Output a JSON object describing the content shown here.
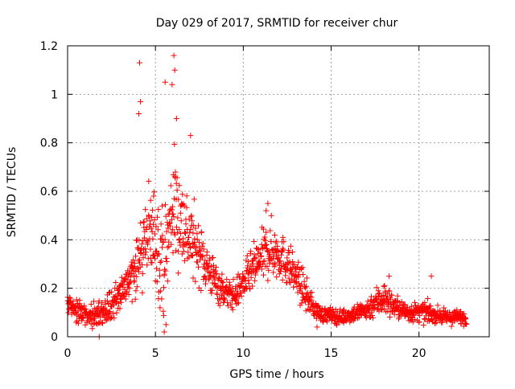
{
  "chart_data": {
    "type": "scatter",
    "title": "Day 029 of 2017, SRMTID for receiver chur",
    "xlabel": "GPS time / hours",
    "ylabel": "SRMTID / TECUs",
    "xlim": [
      0,
      24
    ],
    "ylim": [
      0,
      1.2
    ],
    "xticks": [
      0,
      5,
      10,
      15,
      20
    ],
    "xtick_labels": [
      "0",
      "5",
      "10",
      "15",
      "20"
    ],
    "yticks": [
      0,
      0.2,
      0.4,
      0.6,
      0.8,
      1.0,
      1.2
    ],
    "ytick_labels": [
      "0",
      "0.2",
      "0.4",
      "0.6",
      "0.8",
      "1",
      "1.2"
    ],
    "grid": true,
    "marker": "+",
    "color": "#ff0000",
    "series": [
      {
        "name": "SRMTID",
        "envelope": {
          "hours": [
            0.0,
            0.5,
            1.0,
            1.5,
            2.0,
            2.5,
            3.0,
            3.5,
            4.0,
            4.5,
            5.0,
            5.5,
            6.0,
            6.5,
            7.0,
            7.5,
            8.0,
            8.5,
            9.0,
            9.5,
            10.0,
            10.5,
            11.0,
            11.5,
            12.0,
            12.5,
            13.0,
            13.5,
            14.0,
            14.5,
            15.0,
            15.5,
            16.0,
            16.5,
            17.0,
            17.5,
            18.0,
            18.5,
            19.0,
            19.5,
            20.0,
            20.5,
            21.0,
            21.5,
            22.0,
            22.5
          ],
          "center": [
            0.14,
            0.11,
            0.08,
            0.08,
            0.1,
            0.13,
            0.17,
            0.24,
            0.32,
            0.4,
            0.42,
            0.3,
            0.55,
            0.48,
            0.4,
            0.35,
            0.28,
            0.22,
            0.18,
            0.17,
            0.22,
            0.27,
            0.32,
            0.36,
            0.34,
            0.3,
            0.25,
            0.18,
            0.12,
            0.09,
            0.09,
            0.08,
            0.09,
            0.1,
            0.11,
            0.14,
            0.16,
            0.13,
            0.11,
            0.1,
            0.1,
            0.1,
            0.09,
            0.08,
            0.08,
            0.08
          ],
          "spread": [
            0.05,
            0.05,
            0.04,
            0.05,
            0.05,
            0.06,
            0.07,
            0.1,
            0.14,
            0.2,
            0.22,
            0.2,
            0.25,
            0.2,
            0.16,
            0.12,
            0.1,
            0.08,
            0.06,
            0.06,
            0.07,
            0.09,
            0.1,
            0.12,
            0.1,
            0.09,
            0.08,
            0.07,
            0.04,
            0.03,
            0.03,
            0.03,
            0.03,
            0.04,
            0.04,
            0.06,
            0.07,
            0.05,
            0.04,
            0.04,
            0.04,
            0.04,
            0.03,
            0.03,
            0.03,
            0.03
          ],
          "x_start": 0.0,
          "x_end": 22.7,
          "count": 1500
        },
        "notable_points": [
          {
            "x": 4.1,
            "y": 1.13
          },
          {
            "x": 4.15,
            "y": 0.97
          },
          {
            "x": 4.05,
            "y": 0.92
          },
          {
            "x": 5.55,
            "y": 1.05
          },
          {
            "x": 6.05,
            "y": 1.16
          },
          {
            "x": 6.1,
            "y": 1.1
          },
          {
            "x": 5.95,
            "y": 1.04
          },
          {
            "x": 6.2,
            "y": 0.9
          },
          {
            "x": 7.0,
            "y": 0.83
          },
          {
            "x": 5.5,
            "y": 0.02
          },
          {
            "x": 5.6,
            "y": 0.05
          },
          {
            "x": 11.4,
            "y": 0.55
          },
          {
            "x": 11.3,
            "y": 0.52
          },
          {
            "x": 18.3,
            "y": 0.25
          },
          {
            "x": 20.7,
            "y": 0.25
          },
          {
            "x": 1.8,
            "y": 0.0
          },
          {
            "x": 14.2,
            "y": 0.04
          }
        ]
      }
    ]
  }
}
